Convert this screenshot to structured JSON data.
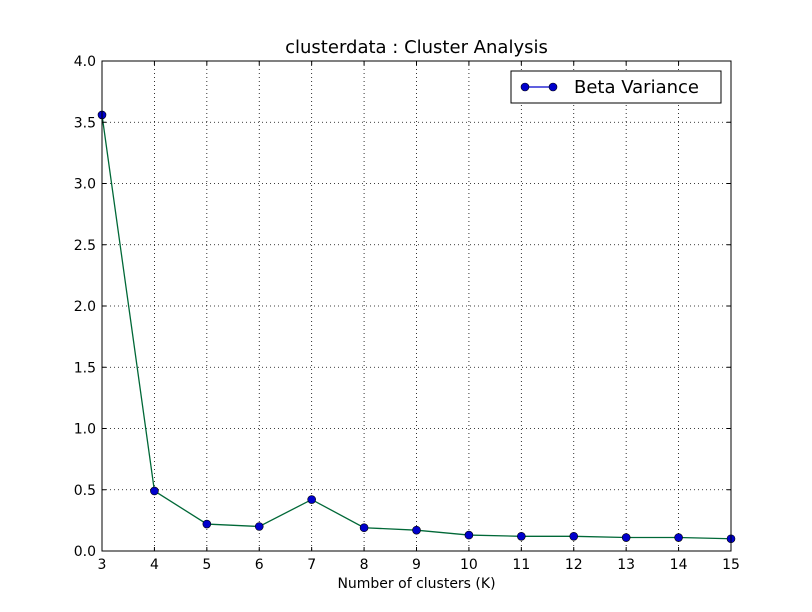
{
  "chart_data": {
    "type": "line",
    "title": "clusterdata : Cluster Analysis",
    "xlabel": "Number of clusters (K)",
    "ylabel": "",
    "xlim": [
      3,
      15
    ],
    "ylim": [
      0,
      4
    ],
    "xticks": [
      3,
      4,
      5,
      6,
      7,
      8,
      9,
      10,
      11,
      12,
      13,
      14,
      15
    ],
    "yticks": [
      "0.0",
      "0.5",
      "1.0",
      "1.5",
      "2.0",
      "2.5",
      "3.0",
      "3.5",
      "4.0"
    ],
    "grid": true,
    "legend_position": "top-right",
    "series": [
      {
        "name": "Beta Variance",
        "x": [
          3,
          4,
          5,
          6,
          7,
          8,
          9,
          10,
          11,
          12,
          13,
          14,
          15
        ],
        "y": [
          3.56,
          0.49,
          0.22,
          0.2,
          0.42,
          0.19,
          0.17,
          0.13,
          0.12,
          0.12,
          0.11,
          0.11,
          0.1
        ],
        "line_color": "#006837",
        "marker_color": "#0000cc",
        "legend_line_color": "#0000cc"
      }
    ]
  }
}
